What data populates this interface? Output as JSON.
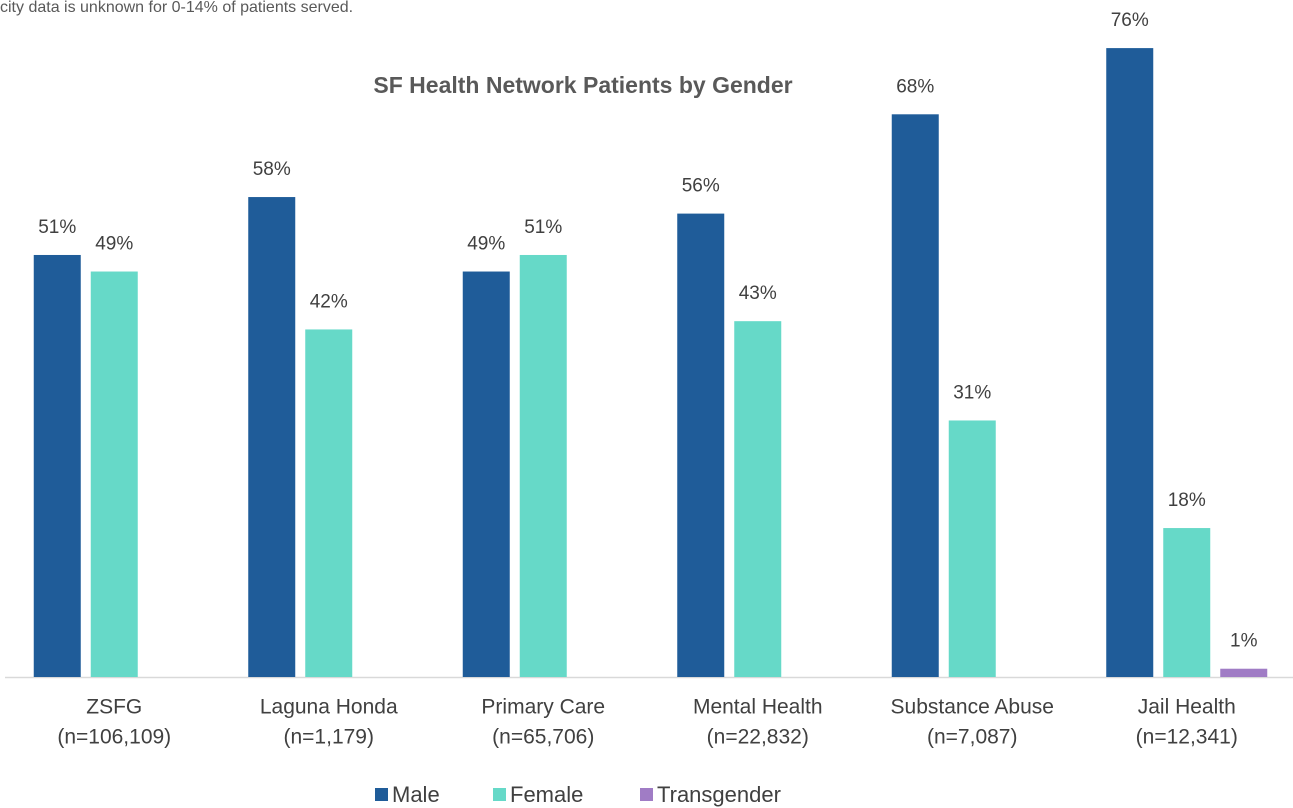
{
  "chart_data": {
    "type": "bar",
    "title": "SF Health Network Patients by Gender",
    "annotations": [
      "city data is unknown for 0-14% of patients served."
    ],
    "categories": [
      [
        "ZSFG",
        "(n=106,109)"
      ],
      [
        "Laguna Honda",
        "(n=1,179)"
      ],
      [
        "Primary Care",
        "(n=65,706)"
      ],
      [
        "Mental Health",
        "(n=22,832)"
      ],
      [
        "Substance Abuse",
        "(n=7,087)"
      ],
      [
        "Jail Health",
        "(n=12,341)"
      ]
    ],
    "series": [
      {
        "name": "Male",
        "color": "#1f5c99",
        "values": [
          51,
          58,
          49,
          56,
          68,
          76
        ],
        "value_labels": [
          "51%",
          "58%",
          "49%",
          "56%",
          "68%",
          "76%"
        ]
      },
      {
        "name": "Female",
        "color": "#66d9c8",
        "values": [
          49,
          42,
          51,
          43,
          31,
          18
        ],
        "value_labels": [
          "49%",
          "42%",
          "51%",
          "43%",
          "31%",
          "18%"
        ]
      },
      {
        "name": "Transgender",
        "color": "#a07cc5",
        "values": [
          null,
          null,
          null,
          null,
          null,
          1
        ],
        "value_labels": [
          null,
          null,
          null,
          null,
          null,
          "1%"
        ]
      }
    ],
    "ylim": [
      0,
      80
    ],
    "legend": "bottom"
  }
}
